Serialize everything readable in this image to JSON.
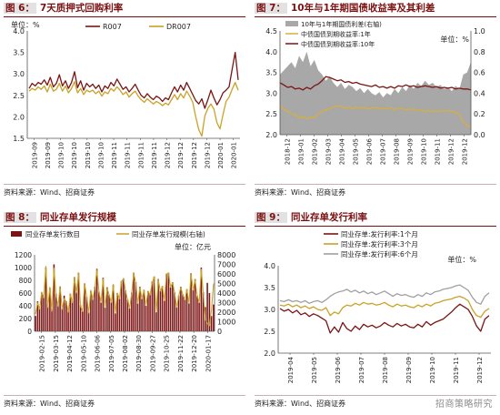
{
  "source_text": "资料来源：Wind、招商证券",
  "watermark": "招商策略研究",
  "chart_data": [
    {
      "id": "fig6",
      "type": "line",
      "num": "图 6：",
      "title": "7天质押式回购利率",
      "unit_label": "单位：%",
      "x_ticks": [
        "2019-09",
        "2019-09",
        "2019-10",
        "2019-10",
        "2019-10",
        "2019-10",
        "2019-11",
        "2019-11",
        "2019-11",
        "2019-11",
        "2019-12",
        "2019-12",
        "2019-12",
        "2019-12",
        "2020-01",
        "2020-01"
      ],
      "ylim": [
        1.5,
        4.0
      ],
      "y_ticks": [
        "1.5",
        "2.0",
        "2.5",
        "3.0",
        "3.5",
        "4.0"
      ],
      "legend": [
        "R007",
        "DR007"
      ],
      "colors": [
        "#7b1414",
        "#c9a227"
      ],
      "series": [
        {
          "name": "R007",
          "values": [
            2.66,
            2.78,
            2.72,
            2.8,
            2.76,
            2.86,
            2.74,
            2.92,
            2.7,
            2.78,
            2.98,
            2.72,
            2.84,
            2.66,
            2.8,
            3.05,
            2.68,
            2.84,
            2.62,
            2.78,
            2.7,
            2.76,
            2.66,
            2.74,
            2.58,
            2.72,
            2.66,
            2.8,
            2.72,
            2.88,
            2.76,
            2.64,
            2.7,
            2.58,
            2.66,
            2.76,
            2.62,
            2.5,
            2.44,
            2.54,
            2.46,
            2.4,
            2.48,
            2.44,
            2.36,
            2.44,
            2.4,
            2.56,
            2.7,
            2.58,
            2.74,
            2.62,
            2.8,
            2.66,
            2.52,
            2.38,
            2.3,
            2.42,
            2.2,
            2.4,
            2.62,
            2.44,
            2.28,
            2.4,
            2.56,
            2.62,
            2.7,
            3.1,
            3.5,
            2.86
          ]
        },
        {
          "name": "DR007",
          "values": [
            2.6,
            2.66,
            2.62,
            2.7,
            2.64,
            2.72,
            2.58,
            2.76,
            2.6,
            2.64,
            2.78,
            2.6,
            2.72,
            2.56,
            2.66,
            2.82,
            2.56,
            2.66,
            2.52,
            2.62,
            2.58,
            2.62,
            2.54,
            2.6,
            2.48,
            2.58,
            2.54,
            2.66,
            2.6,
            2.7,
            2.62,
            2.52,
            2.58,
            2.46,
            2.54,
            2.6,
            2.48,
            2.4,
            2.34,
            2.42,
            2.36,
            2.3,
            2.36,
            2.32,
            2.26,
            2.32,
            2.28,
            2.4,
            2.52,
            2.4,
            2.54,
            2.44,
            2.6,
            2.48,
            2.34,
            2.0,
            1.7,
            1.55,
            2.02,
            2.2,
            2.3,
            2.18,
            1.86,
            1.72,
            2.05,
            2.36,
            2.46,
            2.64,
            2.8,
            2.62
          ]
        }
      ]
    },
    {
      "id": "fig7",
      "type": "line",
      "num": "图 7：",
      "title": "10年与1年期国债收益率及其利差",
      "unit_label": "单位：%",
      "x_ticks": [
        "2018-12",
        "2019-01",
        "2019-02",
        "2019-03",
        "2019-04",
        "2019-05",
        "2019-06",
        "2019-07",
        "2019-08",
        "2019-09",
        "2019-10",
        "2019-11",
        "2019-12",
        "2019-12"
      ],
      "ylim_left": [
        2.0,
        4.5
      ],
      "y_ticks_left": [
        "2.0",
        "2.5",
        "3.0",
        "3.5",
        "4.0",
        "4.5"
      ],
      "ylim_right": [
        0.0,
        1.0
      ],
      "y_ticks_right": [
        "0.0",
        "0.2",
        "0.4",
        "0.6",
        "0.8",
        "1.0"
      ],
      "legend": [
        "10年与1年期国债利差(右轴)",
        "中债国债到期收益率:1年",
        "中债国债到期收益率:10年"
      ],
      "colors": [
        "#a8a8a8",
        "#d8ae3c",
        "#7b1414"
      ],
      "series": [
        {
          "name": "10年与1年期国债利差(右轴)",
          "axis": "right",
          "values": [
            0.58,
            0.62,
            0.66,
            0.7,
            0.64,
            0.76,
            0.7,
            0.8,
            0.66,
            0.72,
            0.62,
            0.58,
            0.52,
            0.56,
            0.5,
            0.46,
            0.5,
            0.44,
            0.48,
            0.46,
            0.42,
            0.45,
            0.4,
            0.44,
            0.4,
            0.38,
            0.41,
            0.36,
            0.4,
            0.38,
            0.44,
            0.4,
            0.46,
            0.42,
            0.48,
            0.44,
            0.5,
            0.47,
            0.52,
            0.48,
            0.5,
            0.46,
            0.48,
            0.44,
            0.46,
            0.42,
            0.47,
            0.44,
            0.58,
            0.6,
            0.7
          ]
        },
        {
          "name": "中债国债到期收益率:1年",
          "axis": "left",
          "values": [
            2.7,
            2.62,
            2.56,
            2.52,
            2.48,
            2.4,
            2.44,
            2.38,
            2.42,
            2.4,
            2.5,
            2.56,
            2.6,
            2.62,
            2.66,
            2.7,
            2.68,
            2.64,
            2.66,
            2.62,
            2.66,
            2.64,
            2.66,
            2.62,
            2.64,
            2.66,
            2.62,
            2.65,
            2.62,
            2.66,
            2.6,
            2.64,
            2.62,
            2.6,
            2.62,
            2.6,
            2.58,
            2.6,
            2.56,
            2.58,
            2.56,
            2.58,
            2.56,
            2.58,
            2.58,
            2.56,
            2.54,
            2.48,
            2.3,
            2.22,
            2.18
          ]
        },
        {
          "name": "中债国债到期收益率:10年",
          "axis": "left",
          "values": [
            3.25,
            3.2,
            3.14,
            3.16,
            3.1,
            3.12,
            3.08,
            3.14,
            3.1,
            3.18,
            3.22,
            3.3,
            3.4,
            3.38,
            3.34,
            3.3,
            3.32,
            3.26,
            3.28,
            3.24,
            3.26,
            3.22,
            3.2,
            3.18,
            3.16,
            3.2,
            3.14,
            3.16,
            3.12,
            3.16,
            3.12,
            3.18,
            3.16,
            3.2,
            3.16,
            3.18,
            3.14,
            3.16,
            3.18,
            3.16,
            3.14,
            3.16,
            3.12,
            3.14,
            3.12,
            3.14,
            3.1,
            3.12,
            3.1,
            3.1,
            3.08
          ]
        }
      ]
    },
    {
      "id": "fig8",
      "type": "bar",
      "num": "图 8：",
      "title": "同业存单发行规模",
      "unit_label": "单位：亿元",
      "x_ticks": [
        "2019-02-15",
        "2019-03-15",
        "2019-04-12",
        "2019-05-10",
        "2019-06-06",
        "2019-07-05",
        "2019-08-02",
        "2019-08-30",
        "2019-09-27",
        "2019-10-25",
        "2019-11-22",
        "2019-12-20",
        "2020-01-17"
      ],
      "ylim_left": [
        0,
        1200
      ],
      "y_ticks_left": [
        "0",
        "100",
        "200",
        "300",
        "400",
        "500",
        "600",
        "700",
        "800",
        "900",
        "1000",
        "1100",
        "1200"
      ],
      "ylim_right": [
        0,
        8000
      ],
      "y_ticks_right": [
        "0",
        "1000",
        "2000",
        "3000",
        "4000",
        "5000",
        "6000",
        "7000",
        "8000"
      ],
      "legend": [
        "同业存单发行数目",
        "同业存单发行规模(右轴)"
      ],
      "colors": [
        "#7b1414",
        "#c9a227"
      ],
      "series": [
        {
          "name": "同业存单发行数目",
          "axis": "left",
          "values": [
            240,
            470,
            380,
            610,
            540,
            1000,
            430,
            680,
            350,
            1050,
            590,
            410,
            700,
            360,
            560,
            470,
            320,
            590,
            480,
            850,
            610,
            920,
            410,
            310,
            750,
            540,
            300,
            630,
            510,
            700,
            980,
            620,
            450,
            840,
            370,
            690,
            570,
            460,
            730,
            280,
            600,
            510,
            790,
            830,
            640,
            500,
            360,
            610,
            920,
            770,
            440,
            700,
            510,
            650,
            400,
            630,
            580,
            780,
            860,
            300,
            820,
            640,
            710,
            480,
            900,
            920,
            690,
            770,
            610,
            380,
            560,
            700,
            580,
            500,
            660,
            440,
            910,
            650,
            820,
            560,
            450,
            1000,
            610,
            380,
            760,
            600,
            240,
            420
          ]
        },
        {
          "name": "同业存单发行规模(右轴)",
          "axis": "right",
          "values": [
            1800,
            3000,
            2300,
            4100,
            3500,
            6800,
            2500,
            4600,
            2100,
            6600,
            3800,
            2600,
            4700,
            2300,
            3400,
            3100,
            2000,
            3900,
            3000,
            5600,
            4000,
            6100,
            2600,
            2100,
            5000,
            3600,
            1900,
            4300,
            3300,
            4600,
            6400,
            4100,
            3000,
            5500,
            2500,
            4500,
            3800,
            3000,
            4900,
            1900,
            4000,
            3400,
            5200,
            5500,
            4200,
            3300,
            2400,
            4000,
            6100,
            5000,
            2900,
            4600,
            3400,
            4300,
            2700,
            4200,
            3800,
            5100,
            5700,
            2000,
            5400,
            4200,
            4700,
            3200,
            6000,
            6100,
            4600,
            5100,
            4000,
            2500,
            3700,
            4600,
            3800,
            3300,
            4400,
            2900,
            6000,
            4300,
            5400,
            3700,
            3000,
            6500,
            4000,
            1200,
            800,
            600,
            2200,
            5000
          ]
        }
      ]
    },
    {
      "id": "fig9",
      "type": "line",
      "num": "图 9：",
      "title": "同业存单发行利率",
      "unit_label": "单位：%",
      "x_ticks": [
        "2019-04",
        "2019-05",
        "2019-06",
        "2019-07",
        "2019-08",
        "2019-09",
        "2019-10",
        "2019-11",
        "2019-12"
      ],
      "ylim": [
        2.0,
        4.0
      ],
      "y_ticks": [
        "2.0",
        "2.5",
        "3.0",
        "3.5",
        "4.0"
      ],
      "legend": [
        "同业存单:发行利率:1个月",
        "同业存单:发行利率:3个月",
        "同业存单:发行利率:6个月"
      ],
      "colors": [
        "#7b1414",
        "#c9a227",
        "#a0a0a0"
      ],
      "series": [
        {
          "name": "同业存单:发行利率:1个月",
          "values": [
            3.02,
            2.96,
            3.0,
            2.92,
            2.98,
            2.88,
            2.92,
            2.84,
            2.9,
            2.86,
            2.8,
            2.74,
            2.46,
            2.6,
            2.48,
            2.7,
            2.56,
            2.5,
            2.62,
            2.54,
            2.66,
            2.6,
            2.64,
            2.58,
            2.62,
            2.7,
            2.64,
            2.6,
            2.68,
            2.62,
            2.66,
            2.6,
            2.58,
            2.66,
            2.6,
            2.72,
            2.64,
            2.7,
            2.74,
            2.78,
            2.86,
            2.94,
            3.04,
            3.12,
            3.06,
            3.0,
            2.84,
            2.62,
            2.5,
            2.78,
            2.86
          ]
        },
        {
          "name": "同业存单:发行利率:3个月",
          "values": [
            3.1,
            3.08,
            3.12,
            3.06,
            3.1,
            3.04,
            3.08,
            3.02,
            3.06,
            3.0,
            2.98,
            3.04,
            2.86,
            2.94,
            2.9,
            3.04,
            3.1,
            3.08,
            3.14,
            3.1,
            3.16,
            3.12,
            3.14,
            3.1,
            3.12,
            3.16,
            3.1,
            3.06,
            3.12,
            3.08,
            3.1,
            3.06,
            3.04,
            3.1,
            3.06,
            3.12,
            3.08,
            3.14,
            3.16,
            3.2,
            3.22,
            3.24,
            3.28,
            3.3,
            3.26,
            3.2,
            3.0,
            2.86,
            2.82,
            2.96,
            3.02
          ]
        },
        {
          "name": "同业存单:发行利率:6个月",
          "values": [
            3.2,
            3.18,
            3.22,
            3.18,
            3.2,
            3.16,
            3.2,
            3.14,
            3.18,
            3.2,
            3.16,
            3.22,
            3.3,
            3.36,
            3.4,
            3.42,
            3.46,
            3.4,
            3.44,
            3.38,
            3.42,
            3.36,
            3.4,
            3.34,
            3.38,
            3.42,
            3.36,
            3.3,
            3.36,
            3.32,
            3.34,
            3.3,
            3.28,
            3.34,
            3.3,
            3.38,
            3.34,
            3.4,
            3.42,
            3.46,
            3.48,
            3.5,
            3.54,
            3.56,
            3.5,
            3.44,
            3.28,
            3.16,
            3.12,
            3.3,
            3.38
          ]
        }
      ]
    }
  ]
}
